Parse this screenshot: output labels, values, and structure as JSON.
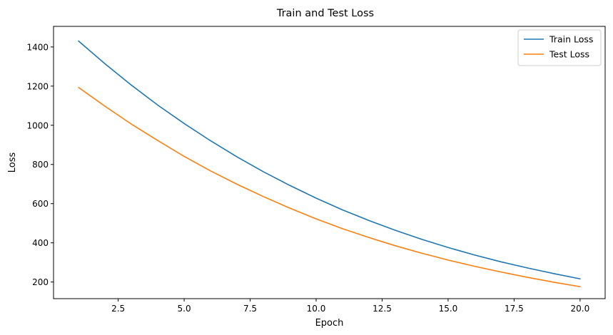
{
  "chart_data": {
    "type": "line",
    "title": "Train and Test Loss",
    "xlabel": "Epoch",
    "ylabel": "Loss",
    "xlim": [
      0.05,
      20.95
    ],
    "ylim": [
      115,
      1505
    ],
    "xticks": [
      2.5,
      5.0,
      7.5,
      10.0,
      12.5,
      15.0,
      17.5,
      20.0
    ],
    "xtick_labels": [
      "2.5",
      "5.0",
      "7.5",
      "10.0",
      "12.5",
      "15.0",
      "17.5",
      "20.0"
    ],
    "yticks": [
      200,
      400,
      600,
      800,
      1000,
      1200,
      1400
    ],
    "ytick_labels": [
      "200",
      "400",
      "600",
      "800",
      "1000",
      "1200",
      "1400"
    ],
    "grid": false,
    "legend_position": "top-right",
    "x": [
      1,
      2,
      3,
      4,
      5,
      6,
      7,
      8,
      9,
      10,
      11,
      12,
      13,
      14,
      15,
      16,
      17,
      18,
      19,
      20
    ],
    "series": [
      {
        "name": "Train Loss",
        "color": "#1f77b4",
        "values": [
          1430,
          1314,
          1205,
          1103,
          1009,
          921,
          839,
          763,
          693,
          628,
          568,
          514,
          464,
          418,
          376,
          338,
          303,
          272,
          243,
          216
        ]
      },
      {
        "name": "Test Loss",
        "color": "#ff7f0e",
        "values": [
          1193,
          1097,
          1006,
          922,
          841,
          767,
          699,
          636,
          577,
          522,
          472,
          427,
          385,
          347,
          312,
          280,
          251,
          224,
          199,
          176
        ]
      }
    ]
  }
}
